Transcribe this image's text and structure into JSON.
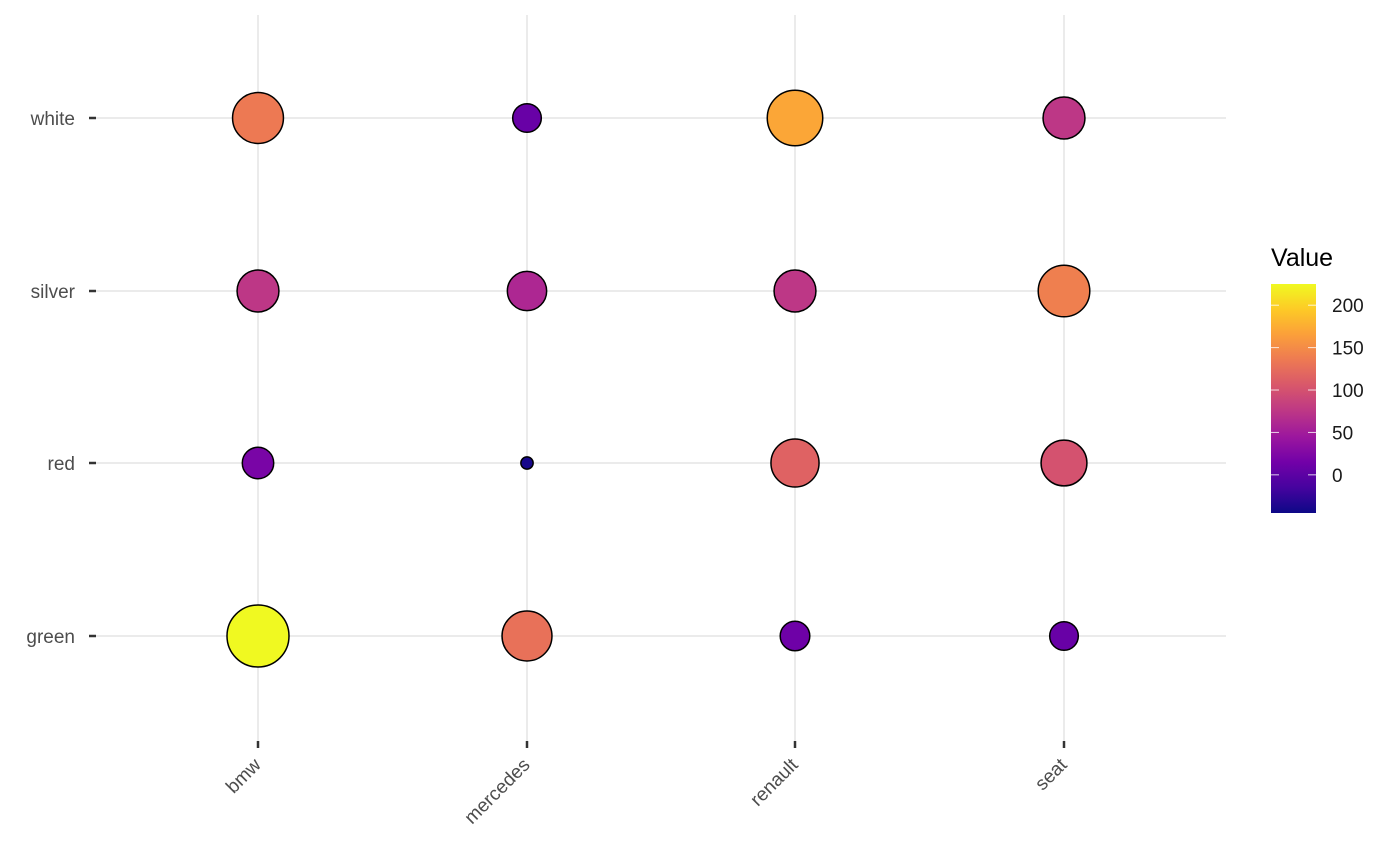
{
  "chart_data": {
    "type": "scatter",
    "subtype": "bubble-grid",
    "title": "",
    "xlabel": "",
    "ylabel": "",
    "categories_x": [
      "bmw",
      "mercedes",
      "renault",
      "seat"
    ],
    "categories_y": [
      "green",
      "red",
      "silver",
      "white"
    ],
    "points": [
      {
        "x": "bmw",
        "y": "white",
        "value": 135
      },
      {
        "x": "bmw",
        "y": "silver",
        "value": 75
      },
      {
        "x": "bmw",
        "y": "red",
        "value": 20
      },
      {
        "x": "bmw",
        "y": "green",
        "value": 225
      },
      {
        "x": "mercedes",
        "y": "white",
        "value": 8
      },
      {
        "x": "mercedes",
        "y": "silver",
        "value": 60
      },
      {
        "x": "mercedes",
        "y": "red",
        "value": -40
      },
      {
        "x": "mercedes",
        "y": "green",
        "value": 128
      },
      {
        "x": "renault",
        "y": "white",
        "value": 170
      },
      {
        "x": "renault",
        "y": "silver",
        "value": 75
      },
      {
        "x": "renault",
        "y": "red",
        "value": 115
      },
      {
        "x": "renault",
        "y": "green",
        "value": 12
      },
      {
        "x": "seat",
        "y": "white",
        "value": 75
      },
      {
        "x": "seat",
        "y": "silver",
        "value": 140
      },
      {
        "x": "seat",
        "y": "red",
        "value": 100
      },
      {
        "x": "seat",
        "y": "green",
        "value": 8
      }
    ],
    "color_scale": {
      "name": "plasma",
      "range": [
        -45,
        225
      ],
      "stops": [
        "#0d0887",
        "#46039f",
        "#7201a8",
        "#9c179e",
        "#bd3786",
        "#d8576b",
        "#ed7953",
        "#fb9f3a",
        "#fdca26",
        "#f0f921"
      ]
    },
    "legend": {
      "title": "Value",
      "ticks": [
        0,
        50,
        100,
        150,
        200
      ],
      "tick_labels": [
        "0",
        "50",
        "100",
        "150",
        "200"
      ],
      "position": "right"
    },
    "grid": true,
    "point_stroke": "#000000",
    "grid_color": "#ebebeb"
  }
}
